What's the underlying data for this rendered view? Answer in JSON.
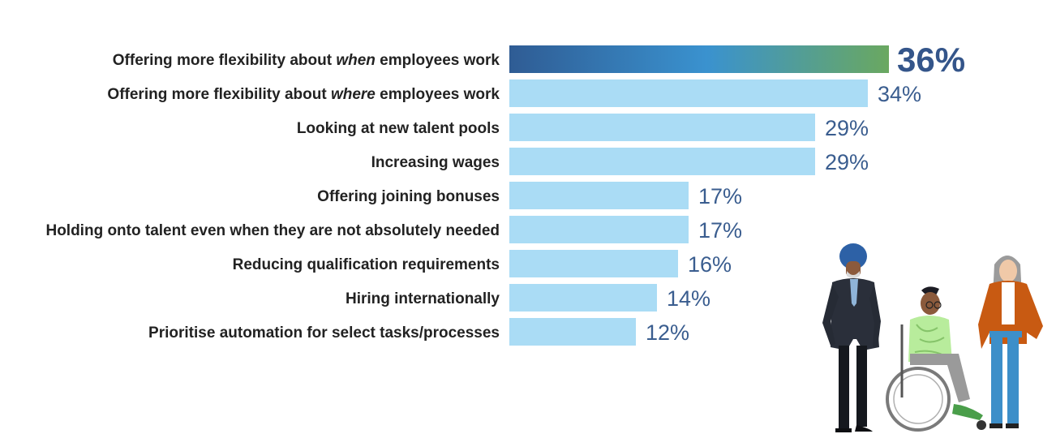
{
  "chart_data": {
    "type": "bar",
    "orientation": "horizontal",
    "categories": [
      "Offering more flexibility about when employees work",
      "Offering more flexibility about where employees work",
      "Looking at new talent pools",
      "Increasing wages",
      "Offering joining bonuses",
      "Holding onto talent even when they are not absolutely needed",
      "Reducing qualification requirements",
      "Hiring internationally",
      "Prioritise automation for select tasks/processes"
    ],
    "category_parts": [
      [
        "Offering more flexibility about ",
        "when",
        " employees work"
      ],
      [
        "Offering more flexibility about ",
        "where",
        " employees work"
      ],
      [
        "Looking at new talent pools",
        "",
        ""
      ],
      [
        "Increasing wages",
        "",
        ""
      ],
      [
        "Offering joining bonuses",
        "",
        ""
      ],
      [
        "Holding onto talent even when they are not absolutely needed",
        "",
        ""
      ],
      [
        "Reducing qualification requirements",
        "",
        ""
      ],
      [
        "Hiring internationally",
        "",
        ""
      ],
      [
        "Prioritise automation for select tasks/processes",
        "",
        ""
      ]
    ],
    "values": [
      36,
      34,
      29,
      29,
      17,
      17,
      16,
      14,
      12
    ],
    "value_labels": [
      "36%",
      "34%",
      "29%",
      "29%",
      "17%",
      "17%",
      "16%",
      "14%",
      "12%"
    ],
    "unit": "%",
    "xlim": [
      0,
      36
    ],
    "grid": false,
    "legend": "none",
    "title": "",
    "xlabel": "",
    "ylabel": ""
  },
  "colors": {
    "bar": "#aadcf5",
    "top_bar_gradient": [
      "#2f5c94",
      "#3a92cf",
      "#6aa860"
    ],
    "value_text": "#3a5d8f",
    "top_value_text": "#34558a",
    "label_text": "#222222"
  },
  "illustration": {
    "name": "people-illustration",
    "figures": [
      "man-in-turban",
      "person-in-wheelchair",
      "woman-in-orange-cardigan"
    ]
  }
}
